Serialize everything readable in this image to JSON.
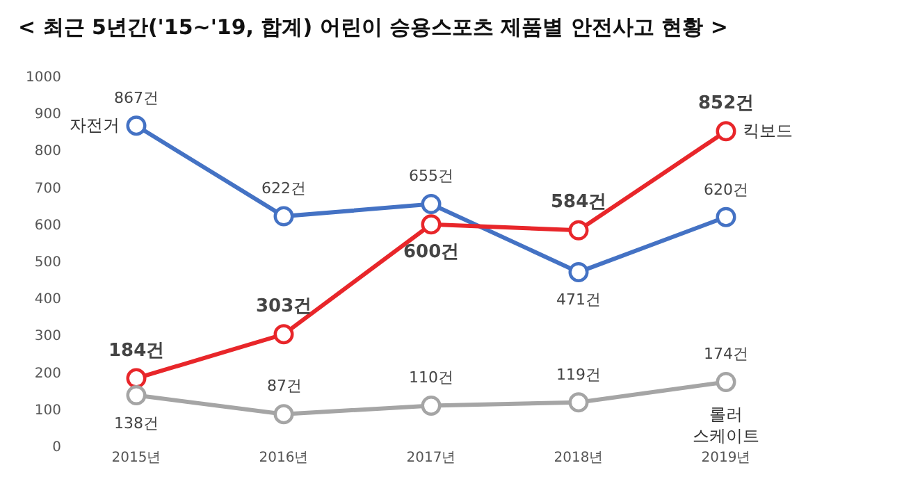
{
  "chart_data": {
    "type": "line",
    "title": "< 최근 5년간('15~'19, 합계) 어린이 승용스포츠 제품별 안전사고 현황 >",
    "categories": [
      "2015년",
      "2016년",
      "2017년",
      "2018년",
      "2019년"
    ],
    "series": [
      {
        "name": "자전거",
        "color": "#4472c4",
        "values": [
          867,
          622,
          655,
          471,
          620
        ],
        "value_labels": [
          "867건",
          "622건",
          "655건",
          "471건",
          "620건"
        ]
      },
      {
        "name": "킥보드",
        "color": "#e8262a",
        "values": [
          184,
          303,
          600,
          584,
          852
        ],
        "value_labels": [
          "184건",
          "303건",
          "600건",
          "584건",
          "852건"
        ]
      },
      {
        "name": "롤러 스케이트",
        "color": "#a5a5a5",
        "values": [
          138,
          87,
          110,
          119,
          174
        ],
        "value_labels": [
          "138건",
          "87건",
          "110건",
          "119건",
          "174건"
        ]
      }
    ],
    "ylim": [
      0,
      1000
    ],
    "yticks": [
      0,
      100,
      200,
      300,
      400,
      500,
      600,
      700,
      800,
      900,
      1000
    ],
    "grid": false,
    "legend": false,
    "marker": "circle",
    "line_style": "solid"
  }
}
